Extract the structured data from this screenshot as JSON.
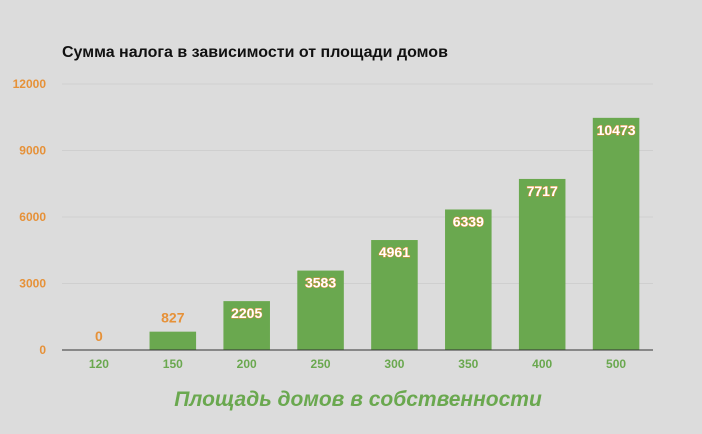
{
  "colors": {
    "background": "#dcdcdc",
    "bar": "#6aa84f",
    "accent": "#e69138",
    "gridline": "#cfcfcf",
    "axis": "#333333",
    "label_outline": "#e69138",
    "inside_label": "#ffffff"
  },
  "chart_data": {
    "type": "bar",
    "title": "Сумма налога в зависимости от площади домов",
    "xlabel": "Площадь домов в собственности",
    "ylabel": "",
    "categories": [
      "120",
      "150",
      "200",
      "250",
      "300",
      "350",
      "400",
      "500"
    ],
    "values": [
      0,
      827,
      2205,
      3583,
      4961,
      6339,
      7717,
      10473
    ],
    "data_labels": [
      "0",
      "827",
      "2205",
      "3583",
      "4961",
      "6339",
      "7717",
      "10473"
    ],
    "ylim": [
      0,
      12000
    ],
    "yticks": [
      0,
      3000,
      6000,
      9000,
      12000
    ],
    "ytick_labels": [
      "0",
      "3000",
      "6000",
      "9000",
      "12000"
    ],
    "grid": true,
    "legend": "none"
  }
}
